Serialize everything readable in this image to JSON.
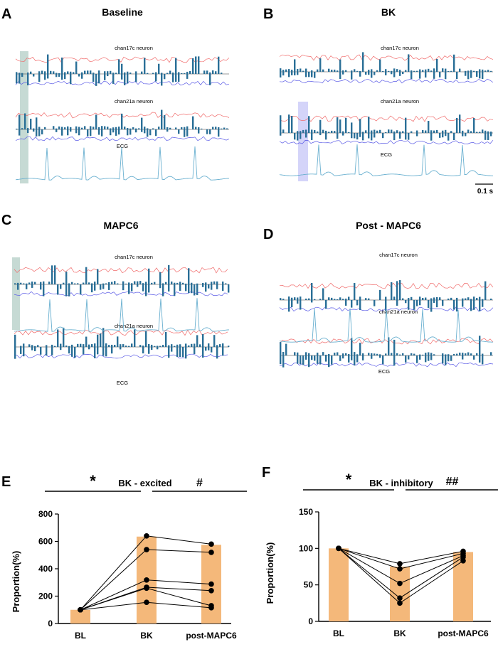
{
  "figure": {
    "panels": [
      {
        "letter": "A",
        "title": "Baseline",
        "traces": [
          "chan17c neuron",
          "chan21a neuron",
          "ECG"
        ]
      },
      {
        "letter": "B",
        "title": "BK",
        "traces": [
          "chan17c neuron",
          "chan21a neuron",
          "ECG"
        ],
        "scalebar": "0.1 s"
      },
      {
        "letter": "C",
        "title": "MAPC6",
        "traces": [
          "chan17c neuron",
          "chan21a neuron",
          "ECG"
        ]
      },
      {
        "letter": "D",
        "title": "Post - MAPC6",
        "traces": [
          "chan17c neuron",
          "chan21a neuron",
          "ECG"
        ]
      }
    ],
    "colors": {
      "bars": "#2a6f97",
      "red_line": "#f06a6a",
      "blue_line": "#5a5ae6",
      "ecg": "#6ab0d0",
      "highlight_A": "#bcd3cc",
      "highlight_B": "#cfcff8",
      "orange": "#f4b87a"
    }
  },
  "chart_data": [
    {
      "letter": "E",
      "type": "bar",
      "title": "BK - excited",
      "ylabel": "Proportion(%)",
      "categories": [
        "BL",
        "BK",
        "post-MAPC6"
      ],
      "values": [
        100,
        635,
        575
      ],
      "ylim": [
        0,
        800
      ],
      "yticks": [
        0,
        200,
        400,
        600,
        800
      ],
      "subjects": [
        [
          100,
          640,
          580
        ],
        [
          100,
          540,
          520
        ],
        [
          100,
          318,
          288
        ],
        [
          100,
          265,
          240
        ],
        [
          100,
          258,
          130
        ],
        [
          100,
          155,
          115
        ]
      ],
      "significance": [
        {
          "label": "*",
          "from": 0,
          "to": 1
        },
        {
          "label": "#",
          "from": 1,
          "to": 2
        }
      ]
    },
    {
      "letter": "F",
      "type": "bar",
      "title": "BK - inhibitory",
      "ylabel": "Proportion(%)",
      "categories": [
        "BL",
        "BK",
        "post-MAPC6"
      ],
      "values": [
        100,
        75,
        95
      ],
      "ylim": [
        0,
        150
      ],
      "yticks": [
        0,
        50,
        100,
        150
      ],
      "subjects": [
        [
          100,
          79,
          96
        ],
        [
          100,
          72,
          93
        ],
        [
          100,
          52,
          90
        ],
        [
          100,
          32,
          88
        ],
        [
          100,
          25,
          83
        ]
      ],
      "significance": [
        {
          "label": "*",
          "from": 0,
          "to": 1
        },
        {
          "label": "##",
          "from": 1,
          "to": 2
        }
      ]
    }
  ]
}
